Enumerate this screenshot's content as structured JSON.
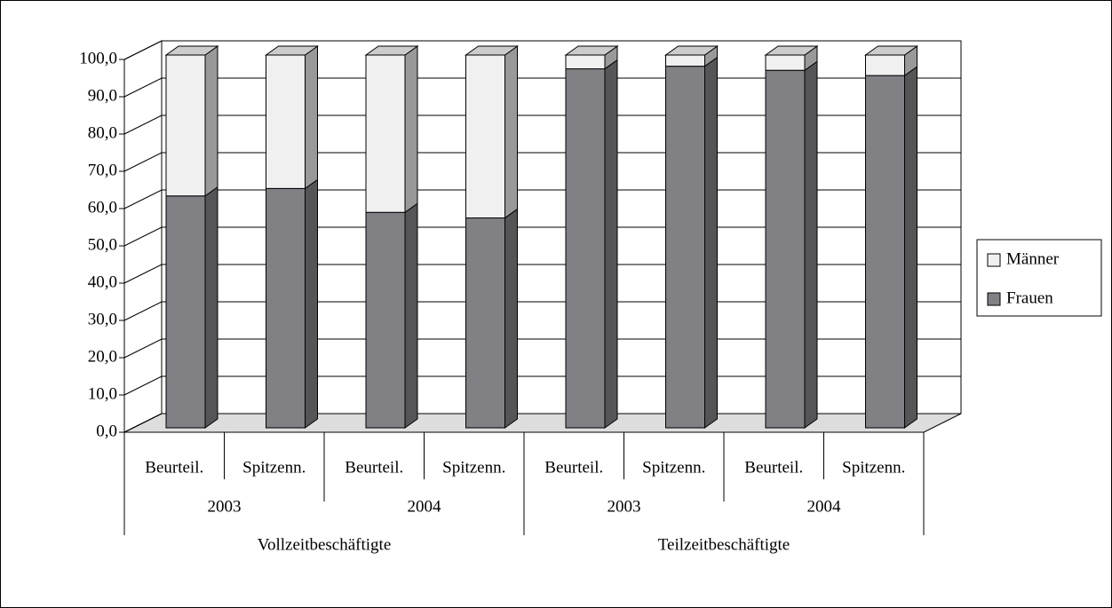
{
  "chart_data": {
    "type": "bar3d_stacked",
    "categories": [
      "Beurteil.",
      "Spitzenn.",
      "Beurteil.",
      "Spitzenn.",
      "Beurteil.",
      "Spitzenn.",
      "Beurteil.",
      "Spitzenn."
    ],
    "years": [
      "2003",
      "2004",
      "2003",
      "2004"
    ],
    "groups": [
      "Vollzeitbeschäftigte",
      "Teilzeitbeschäftigte"
    ],
    "series": [
      {
        "name": "Frauen",
        "color": "#808085",
        "values": [
          62.2,
          64.2,
          57.8,
          56.3,
          96.3,
          97.0,
          95.9,
          94.5
        ]
      },
      {
        "name": "Männer",
        "color": "#f0f0f0",
        "values": [
          37.8,
          35.8,
          42.2,
          43.7,
          3.7,
          3.0,
          4.1,
          5.5
        ]
      }
    ],
    "ylim": [
      0,
      100
    ],
    "yticks": [
      {
        "value": 0,
        "label": "0,0"
      },
      {
        "value": 10,
        "label": "10,0"
      },
      {
        "value": 20,
        "label": "20,0"
      },
      {
        "value": 30,
        "label": "30,0"
      },
      {
        "value": 40,
        "label": "40,0"
      },
      {
        "value": 50,
        "label": "50,0"
      },
      {
        "value": 60,
        "label": "60,0"
      },
      {
        "value": 70,
        "label": "70,0"
      },
      {
        "value": 80,
        "label": "80,0"
      },
      {
        "value": 90,
        "label": "90,0"
      },
      {
        "value": 100,
        "label": "100,0"
      }
    ],
    "grid": true,
    "legend": "right"
  }
}
